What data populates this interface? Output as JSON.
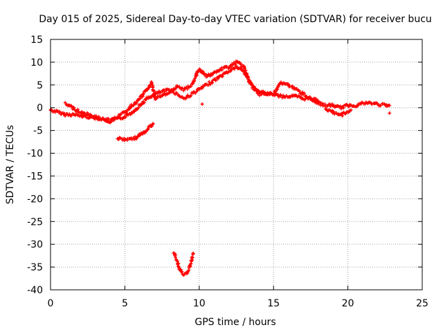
{
  "chart_data": {
    "type": "scatter",
    "title": "Day 015 of 2025, Sidereal Day-to-day VTEC variation (SDTVAR) for receiver bucu",
    "xlabel": "GPS time / hours",
    "ylabel": "SDTVAR / TECUs",
    "xlim": [
      0,
      25
    ],
    "ylim": [
      -40,
      15
    ],
    "xticks": [
      0,
      5,
      10,
      15,
      20,
      25
    ],
    "yticks": [
      15,
      10,
      5,
      0,
      -5,
      -10,
      -15,
      -20,
      -25,
      -30,
      -35,
      -40
    ],
    "xtick_labels": [
      "0",
      "5",
      "10",
      "15",
      "20",
      "25"
    ],
    "ytick_labels": [
      "15",
      "10",
      "5",
      "0",
      "-5",
      "-10",
      "-15",
      "-20",
      "-25",
      "-30",
      "-35",
      "-40"
    ],
    "grid": true,
    "marker": "plus",
    "series": [
      {
        "name": "main-trend",
        "color": "#ff0000",
        "x": [
          0.0,
          0.5,
          1.0,
          1.5,
          2.0,
          2.5,
          3.0,
          3.5,
          4.0,
          4.5,
          5.0,
          5.5,
          6.0,
          6.5,
          7.0,
          7.5,
          8.0,
          8.5,
          9.0,
          9.5,
          10.0,
          10.5,
          11.0,
          11.5,
          12.0,
          12.5,
          13.0,
          13.5,
          14.0,
          14.5,
          15.0,
          15.5,
          16.0,
          16.5,
          17.0,
          17.5,
          18.0,
          18.5,
          19.0,
          19.5,
          20.0,
          20.5,
          21.0,
          21.5,
          22.0,
          22.5,
          22.8
        ],
        "y": [
          -0.5,
          -1.0,
          -1.5,
          -1.5,
          -1.8,
          -2.0,
          -2.2,
          -2.5,
          -2.8,
          -2.5,
          -2.0,
          -1.0,
          0.5,
          2.0,
          3.0,
          3.5,
          4.0,
          3.0,
          2.0,
          3.0,
          4.0,
          5.0,
          6.0,
          7.0,
          8.0,
          9.0,
          8.0,
          5.0,
          3.0,
          3.0,
          3.0,
          2.5,
          2.5,
          2.5,
          2.0,
          2.0,
          1.0,
          0.5,
          0.5,
          0.0,
          0.5,
          0.5,
          1.0,
          1.0,
          0.8,
          0.5,
          0.5
        ]
      },
      {
        "name": "upper-branch",
        "color": "#ff0000",
        "x": [
          1.0,
          1.5,
          2.0,
          2.5,
          3.0,
          3.5,
          4.0,
          4.5,
          5.0,
          5.5,
          6.0,
          6.5,
          6.8,
          7.0,
          7.5,
          8.0,
          8.5,
          9.0,
          9.5,
          10.0,
          10.5,
          11.0,
          11.5,
          12.0,
          12.5,
          13.0,
          13.5,
          14.0,
          15.0,
          15.5,
          16.0,
          16.5,
          17.0,
          17.5,
          18.0
        ],
        "y": [
          0.8,
          0.0,
          -1.0,
          -1.5,
          -2.0,
          -2.5,
          -3.0,
          -2.0,
          -1.0,
          0.5,
          2.0,
          4.0,
          5.5,
          2.0,
          2.5,
          3.5,
          4.5,
          4.0,
          5.0,
          8.5,
          7.0,
          7.5,
          8.5,
          9.0,
          10.0,
          9.0,
          5.0,
          3.5,
          3.0,
          5.5,
          5.0,
          4.0,
          3.0,
          2.0,
          1.5
        ]
      },
      {
        "name": "dip-evening",
        "color": "#ff0000",
        "x": [
          18.5,
          19.0,
          19.3,
          19.6,
          19.9,
          20.2
        ],
        "y": [
          -0.5,
          -1.0,
          -1.5,
          -1.5,
          -1.0,
          -0.5
        ]
      },
      {
        "name": "lower-arc",
        "color": "#ff0000",
        "x": [
          4.5,
          5.0,
          5.5,
          5.8,
          6.0,
          6.3,
          6.6,
          6.9
        ],
        "y": [
          -6.8,
          -7.0,
          -6.8,
          -6.5,
          -6.0,
          -5.5,
          -4.5,
          -3.5
        ]
      },
      {
        "name": "deep-dip",
        "color": "#ff0000",
        "x": [
          8.3,
          8.5,
          8.7,
          8.9,
          9.1,
          9.3,
          9.5,
          9.6
        ],
        "y": [
          -32.0,
          -33.5,
          -35.5,
          -36.5,
          -36.5,
          -35.5,
          -33.5,
          -32.0
        ]
      },
      {
        "name": "isolated-points",
        "color": "#ff0000",
        "x": [
          10.2,
          9.8,
          22.8
        ],
        "y": [
          0.8,
          7.5,
          -1.2
        ]
      }
    ]
  }
}
